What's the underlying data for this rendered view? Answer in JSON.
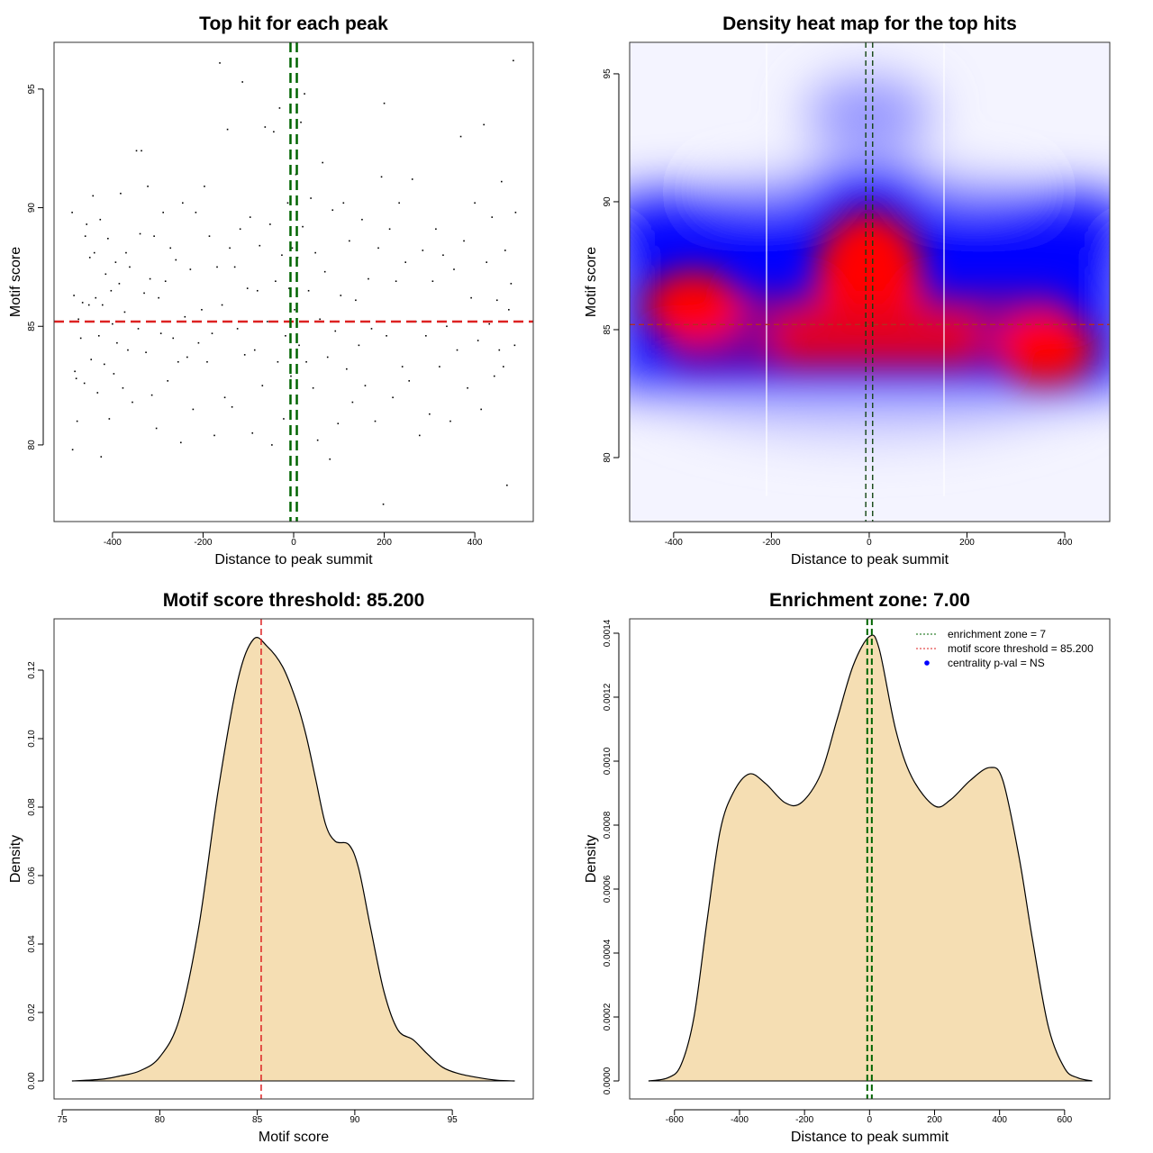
{
  "chart_data": [
    {
      "type": "scatter",
      "title": "Top hit for each peak",
      "xlabel": "Distance to peak summit",
      "ylabel": "Motif score",
      "xlim": [
        -529,
        529
      ],
      "ylim": [
        76.77,
        96.97
      ],
      "xticks": [
        -400,
        -200,
        0,
        200,
        400
      ],
      "yticks": [
        80,
        85,
        90,
        95
      ],
      "threshold": 85.2,
      "enrichment_zone": [
        -7,
        7
      ],
      "threshold_color": "#dd2222",
      "zone_color": "#006400",
      "points": [
        [
          -489,
          89.8
        ],
        [
          -488,
          79.8
        ],
        [
          -485,
          86.3
        ],
        [
          -483,
          83.1
        ],
        [
          -480,
          82.8
        ],
        [
          -478,
          81.0
        ],
        [
          -475,
          85.3
        ],
        [
          -470,
          84.5
        ],
        [
          -466,
          86.0
        ],
        [
          -462,
          82.6
        ],
        [
          -460,
          88.8
        ],
        [
          -457,
          89.3
        ],
        [
          -452,
          85.9
        ],
        [
          -450,
          87.9
        ],
        [
          -447,
          83.6
        ],
        [
          -443,
          90.5
        ],
        [
          -440,
          88.1
        ],
        [
          -437,
          86.2
        ],
        [
          -433,
          82.2
        ],
        [
          -430,
          84.6
        ],
        [
          -427,
          89.5
        ],
        [
          -425,
          79.5
        ],
        [
          -422,
          85.9
        ],
        [
          -418,
          83.4
        ],
        [
          -415,
          87.2
        ],
        [
          -410,
          88.7
        ],
        [
          -407,
          81.1
        ],
        [
          -403,
          86.5
        ],
        [
          -400,
          85.1
        ],
        [
          -397,
          83.0
        ],
        [
          -393,
          87.7
        ],
        [
          -390,
          84.3
        ],
        [
          -385,
          86.8
        ],
        [
          -382,
          90.6
        ],
        [
          -377,
          82.4
        ],
        [
          -373,
          85.6
        ],
        [
          -370,
          88.1
        ],
        [
          -366,
          84.0
        ],
        [
          -362,
          87.5
        ],
        [
          -356,
          81.8
        ],
        [
          -350,
          85.2
        ],
        [
          -347,
          92.4
        ],
        [
          -343,
          84.9
        ],
        [
          -339,
          88.9
        ],
        [
          -336,
          92.4
        ],
        [
          -330,
          86.4
        ],
        [
          -326,
          83.9
        ],
        [
          -322,
          90.9
        ],
        [
          -317,
          87.0
        ],
        [
          -313,
          82.1
        ],
        [
          -308,
          88.8
        ],
        [
          -303,
          80.7
        ],
        [
          -298,
          86.2
        ],
        [
          -293,
          84.7
        ],
        [
          -288,
          89.8
        ],
        [
          -283,
          86.9
        ],
        [
          -278,
          82.7
        ],
        [
          -272,
          88.3
        ],
        [
          -266,
          84.5
        ],
        [
          -260,
          87.8
        ],
        [
          -255,
          83.5
        ],
        [
          -249,
          80.1
        ],
        [
          -245,
          90.2
        ],
        [
          -240,
          85.4
        ],
        [
          -235,
          83.7
        ],
        [
          -228,
          87.4
        ],
        [
          -222,
          81.5
        ],
        [
          -216,
          89.8
        ],
        [
          -210,
          84.3
        ],
        [
          -203,
          85.7
        ],
        [
          -197,
          90.9
        ],
        [
          -191,
          83.5
        ],
        [
          -186,
          88.8
        ],
        [
          -180,
          84.7
        ],
        [
          -175,
          80.4
        ],
        [
          -169,
          87.5
        ],
        [
          -163,
          96.1
        ],
        [
          -158,
          85.9
        ],
        [
          -152,
          82.0
        ],
        [
          -146,
          93.3
        ],
        [
          -141,
          88.3
        ],
        [
          -136,
          81.6
        ],
        [
          -130,
          87.5
        ],
        [
          -124,
          84.9
        ],
        [
          -118,
          89.1
        ],
        [
          -113,
          95.3
        ],
        [
          -108,
          83.8
        ],
        [
          -102,
          86.6
        ],
        [
          -96,
          89.6
        ],
        [
          -91,
          80.5
        ],
        [
          -86,
          84.0
        ],
        [
          -80,
          86.5
        ],
        [
          -75,
          88.4
        ],
        [
          -69,
          82.5
        ],
        [
          -63,
          93.4
        ],
        [
          -58,
          85.2
        ],
        [
          -52,
          89.3
        ],
        [
          -48,
          80.0
        ],
        [
          -44,
          93.2
        ],
        [
          -40,
          86.9
        ],
        [
          -35,
          83.5
        ],
        [
          -31,
          94.2
        ],
        [
          -26,
          88.0
        ],
        [
          -22,
          81.1
        ],
        [
          -18,
          84.6
        ],
        [
          -13,
          90.2
        ],
        [
          -10,
          86.6
        ],
        [
          -6,
          82.9
        ],
        [
          -3,
          88.3
        ],
        [
          2,
          85.7
        ],
        [
          5,
          91.4
        ],
        [
          9,
          87.9
        ],
        [
          12,
          84.2
        ],
        [
          16,
          93.6
        ],
        [
          20,
          89.2
        ],
        [
          24,
          94.8
        ],
        [
          28,
          83.5
        ],
        [
          33,
          86.5
        ],
        [
          38,
          90.4
        ],
        [
          43,
          82.4
        ],
        [
          48,
          88.1
        ],
        [
          53,
          80.2
        ],
        [
          58,
          85.3
        ],
        [
          64,
          91.9
        ],
        [
          69,
          87.3
        ],
        [
          75,
          83.7
        ],
        [
          80,
          79.4
        ],
        [
          86,
          89.9
        ],
        [
          92,
          84.8
        ],
        [
          98,
          80.9
        ],
        [
          104,
          86.3
        ],
        [
          110,
          90.2
        ],
        [
          117,
          83.2
        ],
        [
          123,
          88.6
        ],
        [
          130,
          81.8
        ],
        [
          137,
          86.1
        ],
        [
          144,
          84.2
        ],
        [
          151,
          89.5
        ],
        [
          158,
          82.5
        ],
        [
          165,
          87.0
        ],
        [
          172,
          84.9
        ],
        [
          180,
          81.0
        ],
        [
          187,
          88.3
        ],
        [
          194,
          91.3
        ],
        [
          198,
          77.5
        ],
        [
          200,
          94.4
        ],
        [
          205,
          84.6
        ],
        [
          212,
          89.1
        ],
        [
          219,
          82.0
        ],
        [
          226,
          86.9
        ],
        [
          233,
          90.2
        ],
        [
          240,
          83.3
        ],
        [
          247,
          87.7
        ],
        [
          255,
          82.7
        ],
        [
          262,
          91.2
        ],
        [
          270,
          85.2
        ],
        [
          278,
          80.4
        ],
        [
          285,
          88.2
        ],
        [
          292,
          84.6
        ],
        [
          300,
          81.3
        ],
        [
          307,
          86.9
        ],
        [
          314,
          89.1
        ],
        [
          322,
          83.3
        ],
        [
          330,
          88.0
        ],
        [
          338,
          85.0
        ],
        [
          346,
          81.0
        ],
        [
          354,
          87.4
        ],
        [
          361,
          84.0
        ],
        [
          369,
          93.0
        ],
        [
          376,
          88.6
        ],
        [
          384,
          82.4
        ],
        [
          392,
          86.2
        ],
        [
          400,
          90.2
        ],
        [
          407,
          84.4
        ],
        [
          414,
          81.5
        ],
        [
          420,
          93.5
        ],
        [
          426,
          87.7
        ],
        [
          432,
          85.1
        ],
        [
          438,
          89.6
        ],
        [
          443,
          82.9
        ],
        [
          449,
          86.1
        ],
        [
          454,
          84.0
        ],
        [
          459,
          91.1
        ],
        [
          463,
          83.3
        ],
        [
          467,
          88.2
        ],
        [
          471,
          78.3
        ],
        [
          475,
          85.7
        ],
        [
          480,
          86.8
        ],
        [
          485,
          96.2
        ],
        [
          488,
          84.2
        ],
        [
          490,
          89.8
        ]
      ]
    },
    {
      "type": "heatmap",
      "title": "Density heat map for the top hits",
      "xlabel": "Distance to peak summit",
      "ylabel": "Motif score",
      "xlim": [
        -490,
        492
      ],
      "ylim": [
        77.5,
        96.23
      ],
      "xticks": [
        -400,
        -200,
        0,
        200,
        400
      ],
      "yticks": [
        80,
        85,
        90,
        95
      ],
      "threshold": 85.2,
      "enrichment_zone": [
        -7,
        7
      ],
      "grid_x": [
        -210,
        153
      ],
      "low_color": "#ffffff",
      "mid_color": "#0000ff",
      "high_color": "#ff0000",
      "density_peaks": [
        {
          "x": -360,
          "y": 85.9,
          "level": "high"
        },
        {
          "x": 0,
          "y": 87.0,
          "level": "high"
        },
        {
          "x": 360,
          "y": 84.3,
          "level": "high"
        },
        {
          "x": 0,
          "y": 93.4,
          "level": "low"
        }
      ]
    },
    {
      "type": "area",
      "title": "Motif score threshold: 85.200",
      "xlabel": "Motif score",
      "ylabel": "Density",
      "xlim": [
        74.58,
        99.15
      ],
      "ylim": [
        -0.00526,
        0.135
      ],
      "xticks": [
        75,
        80,
        85,
        90,
        95
      ],
      "yticks": [
        0.0,
        0.02,
        0.04,
        0.06,
        0.08,
        0.1,
        0.12
      ],
      "ytick_labels": [
        "0.00",
        "0.02",
        "0.04",
        "0.06",
        "0.08",
        "0.10",
        "0.12"
      ],
      "threshold": 85.2,
      "fill_color": "#f5deb3",
      "x": [
        75.5,
        77,
        78,
        79,
        80,
        81,
        82,
        83,
        84,
        84.8,
        85.5,
        86.3,
        87,
        87.5,
        88,
        88.5,
        89,
        89.7,
        90.2,
        90.8,
        91.5,
        92.2,
        93,
        93.7,
        94.5,
        95.3,
        96.3,
        97.3,
        98.2
      ],
      "y": [
        0,
        0.0005,
        0.0015,
        0.003,
        0.007,
        0.018,
        0.045,
        0.085,
        0.117,
        0.129,
        0.127,
        0.121,
        0.111,
        0.101,
        0.088,
        0.075,
        0.07,
        0.069,
        0.062,
        0.045,
        0.026,
        0.015,
        0.012,
        0.008,
        0.004,
        0.0022,
        0.001,
        0.0002,
        0
      ]
    },
    {
      "type": "area",
      "title": "Enrichment zone: 7.00",
      "xlabel": "Distance to peak summit",
      "ylabel": "Density",
      "xlim": [
        -738,
        739
      ],
      "ylim": [
        -5.63e-05,
        0.001445
      ],
      "xticks": [
        -600,
        -400,
        -200,
        0,
        200,
        400,
        600
      ],
      "yticks": [
        0,
        0.0002,
        0.0004,
        0.0006,
        0.0008,
        0.001,
        0.0012,
        0.0014
      ],
      "ytick_labels": [
        "0.0000",
        "0.0002",
        "0.0004",
        "0.0006",
        "0.0008",
        "0.0010",
        "0.0012",
        "0.0014"
      ],
      "enrichment_zone": [
        -7,
        7
      ],
      "fill_color": "#f5deb3",
      "x": [
        -680,
        -620,
        -580,
        -540,
        -500,
        -460,
        -420,
        -370,
        -320,
        -260,
        -210,
        -150,
        -100,
        -50,
        0,
        30,
        80,
        130,
        200,
        250,
        310,
        370,
        410,
        460,
        500,
        550,
        600,
        640,
        685
      ],
      "y": [
        0,
        1e-05,
        5e-05,
        0.0002,
        0.0005,
        0.00078,
        0.0009,
        0.00096,
        0.00093,
        0.00087,
        0.00087,
        0.00096,
        0.00113,
        0.0013,
        0.00139,
        0.00135,
        0.0011,
        0.00095,
        0.00086,
        0.00088,
        0.00094,
        0.00098,
        0.00094,
        0.0007,
        0.00045,
        0.00017,
        4e-05,
        1e-05,
        0
      ],
      "legend": {
        "placement": "top-right",
        "entries": [
          {
            "label": "enrichment zone = 7",
            "color": "#006400",
            "style": "dotted-line"
          },
          {
            "label": "motif score threshold = 85.200",
            "color": "#dd2222",
            "style": "dotted-line"
          },
          {
            "label": "centrality p-val = NS",
            "color": "#0000ff",
            "style": "dot"
          }
        ]
      }
    }
  ]
}
